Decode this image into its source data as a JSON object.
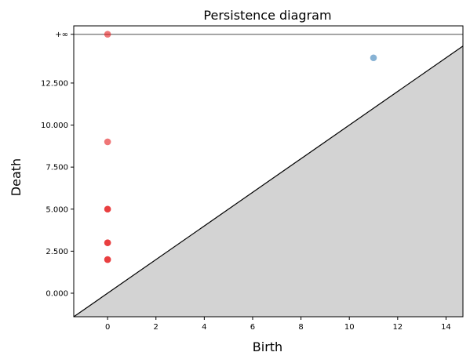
{
  "chart_data": {
    "type": "scatter",
    "title": "Persistence diagram",
    "xlabel": "Birth",
    "ylabel": "Death",
    "xlim": [
      -1.4,
      14.7
    ],
    "ylim": [
      -1.4,
      15.9
    ],
    "x_ticks": [
      0,
      2,
      4,
      6,
      8,
      10,
      12,
      14
    ],
    "x_tick_labels": [
      "0",
      "2",
      "4",
      "6",
      "8",
      "10",
      "12",
      "14"
    ],
    "y_ticks": [
      0,
      2.5,
      5,
      7.5,
      10,
      12.5
    ],
    "y_tick_labels": [
      "0.000",
      "2.500",
      "5.000",
      "7.500",
      "10.000",
      "12.500"
    ],
    "infinity_label": "+∞",
    "infinity_y": 15.4,
    "diagonal": true,
    "colors": {
      "dim0": "#e41a1c",
      "dim1": "#377eb8",
      "infinity_line": "#707070",
      "diagonal_fill": "#d3d3d3"
    },
    "series": [
      {
        "color": "#e41a1c",
        "points": [
          {
            "x": 0,
            "y": "inf"
          },
          {
            "x": 0,
            "y": 9
          },
          {
            "x": 0,
            "y": 5
          },
          {
            "x": 0,
            "y": 5
          },
          {
            "x": 0,
            "y": 3
          },
          {
            "x": 0,
            "y": 3
          },
          {
            "x": 0,
            "y": 2
          },
          {
            "x": 0,
            "y": 2
          }
        ]
      },
      {
        "color": "#377eb8",
        "points": [
          {
            "x": 11,
            "y": 14
          }
        ]
      }
    ]
  }
}
